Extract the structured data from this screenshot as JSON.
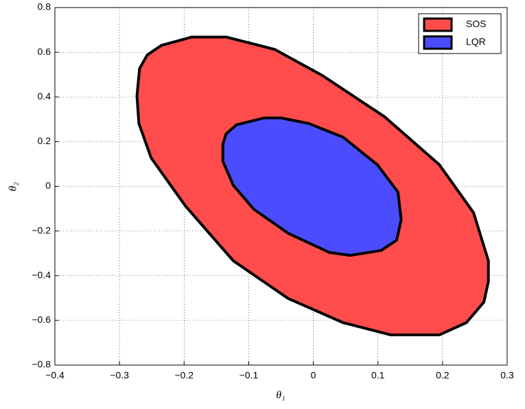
{
  "chart_data": {
    "type": "region",
    "xlabel": "θ₁",
    "ylabel": "θ₂",
    "xlim": [
      -0.4,
      0.3
    ],
    "ylim": [
      -0.8,
      0.8
    ],
    "xticks": [
      {
        "value": -0.4,
        "label": "−0.4"
      },
      {
        "value": -0.3,
        "label": "−0.3"
      },
      {
        "value": -0.2,
        "label": "−0.2"
      },
      {
        "value": -0.1,
        "label": "−0.1"
      },
      0,
      0.1,
      0.2,
      0.3
    ],
    "yticks": [
      {
        "value": -0.8,
        "label": "−0.8"
      },
      {
        "value": -0.6,
        "label": "−0.6"
      },
      {
        "value": -0.4,
        "label": "−0.4"
      },
      {
        "value": -0.2,
        "label": "−0.2"
      },
      0,
      0.2,
      0.4,
      0.6,
      0.8
    ],
    "grid": true,
    "legend": "top-right",
    "series": [
      {
        "name": "SOS",
        "color": "#ff4c4c",
        "x": [
          -0.273,
          -0.269,
          -0.257,
          -0.235,
          -0.188,
          -0.135,
          -0.06,
          0.014,
          0.11,
          0.195,
          0.248,
          0.271,
          0.271,
          0.264,
          0.237,
          0.195,
          0.12,
          0.046,
          -0.039,
          -0.124,
          -0.198,
          -0.251,
          -0.27
        ],
        "y": [
          0.404,
          0.527,
          0.588,
          0.631,
          0.668,
          0.668,
          0.613,
          0.496,
          0.312,
          0.097,
          -0.118,
          -0.333,
          -0.425,
          -0.518,
          -0.61,
          -0.665,
          -0.665,
          -0.61,
          -0.502,
          -0.333,
          -0.088,
          0.127,
          0.281
        ]
      },
      {
        "name": "LQR",
        "color": "#4c4cff",
        "x": [
          -0.14,
          -0.135,
          -0.119,
          -0.076,
          -0.05,
          -0.007,
          0.046,
          0.099,
          0.131,
          0.136,
          0.129,
          0.105,
          0.057,
          0.025,
          -0.039,
          -0.092,
          -0.124,
          -0.14
        ],
        "y": [
          0.189,
          0.235,
          0.275,
          0.306,
          0.306,
          0.281,
          0.22,
          0.097,
          -0.026,
          -0.149,
          -0.241,
          -0.287,
          -0.309,
          -0.296,
          -0.21,
          -0.103,
          0.005,
          0.112
        ]
      }
    ]
  }
}
